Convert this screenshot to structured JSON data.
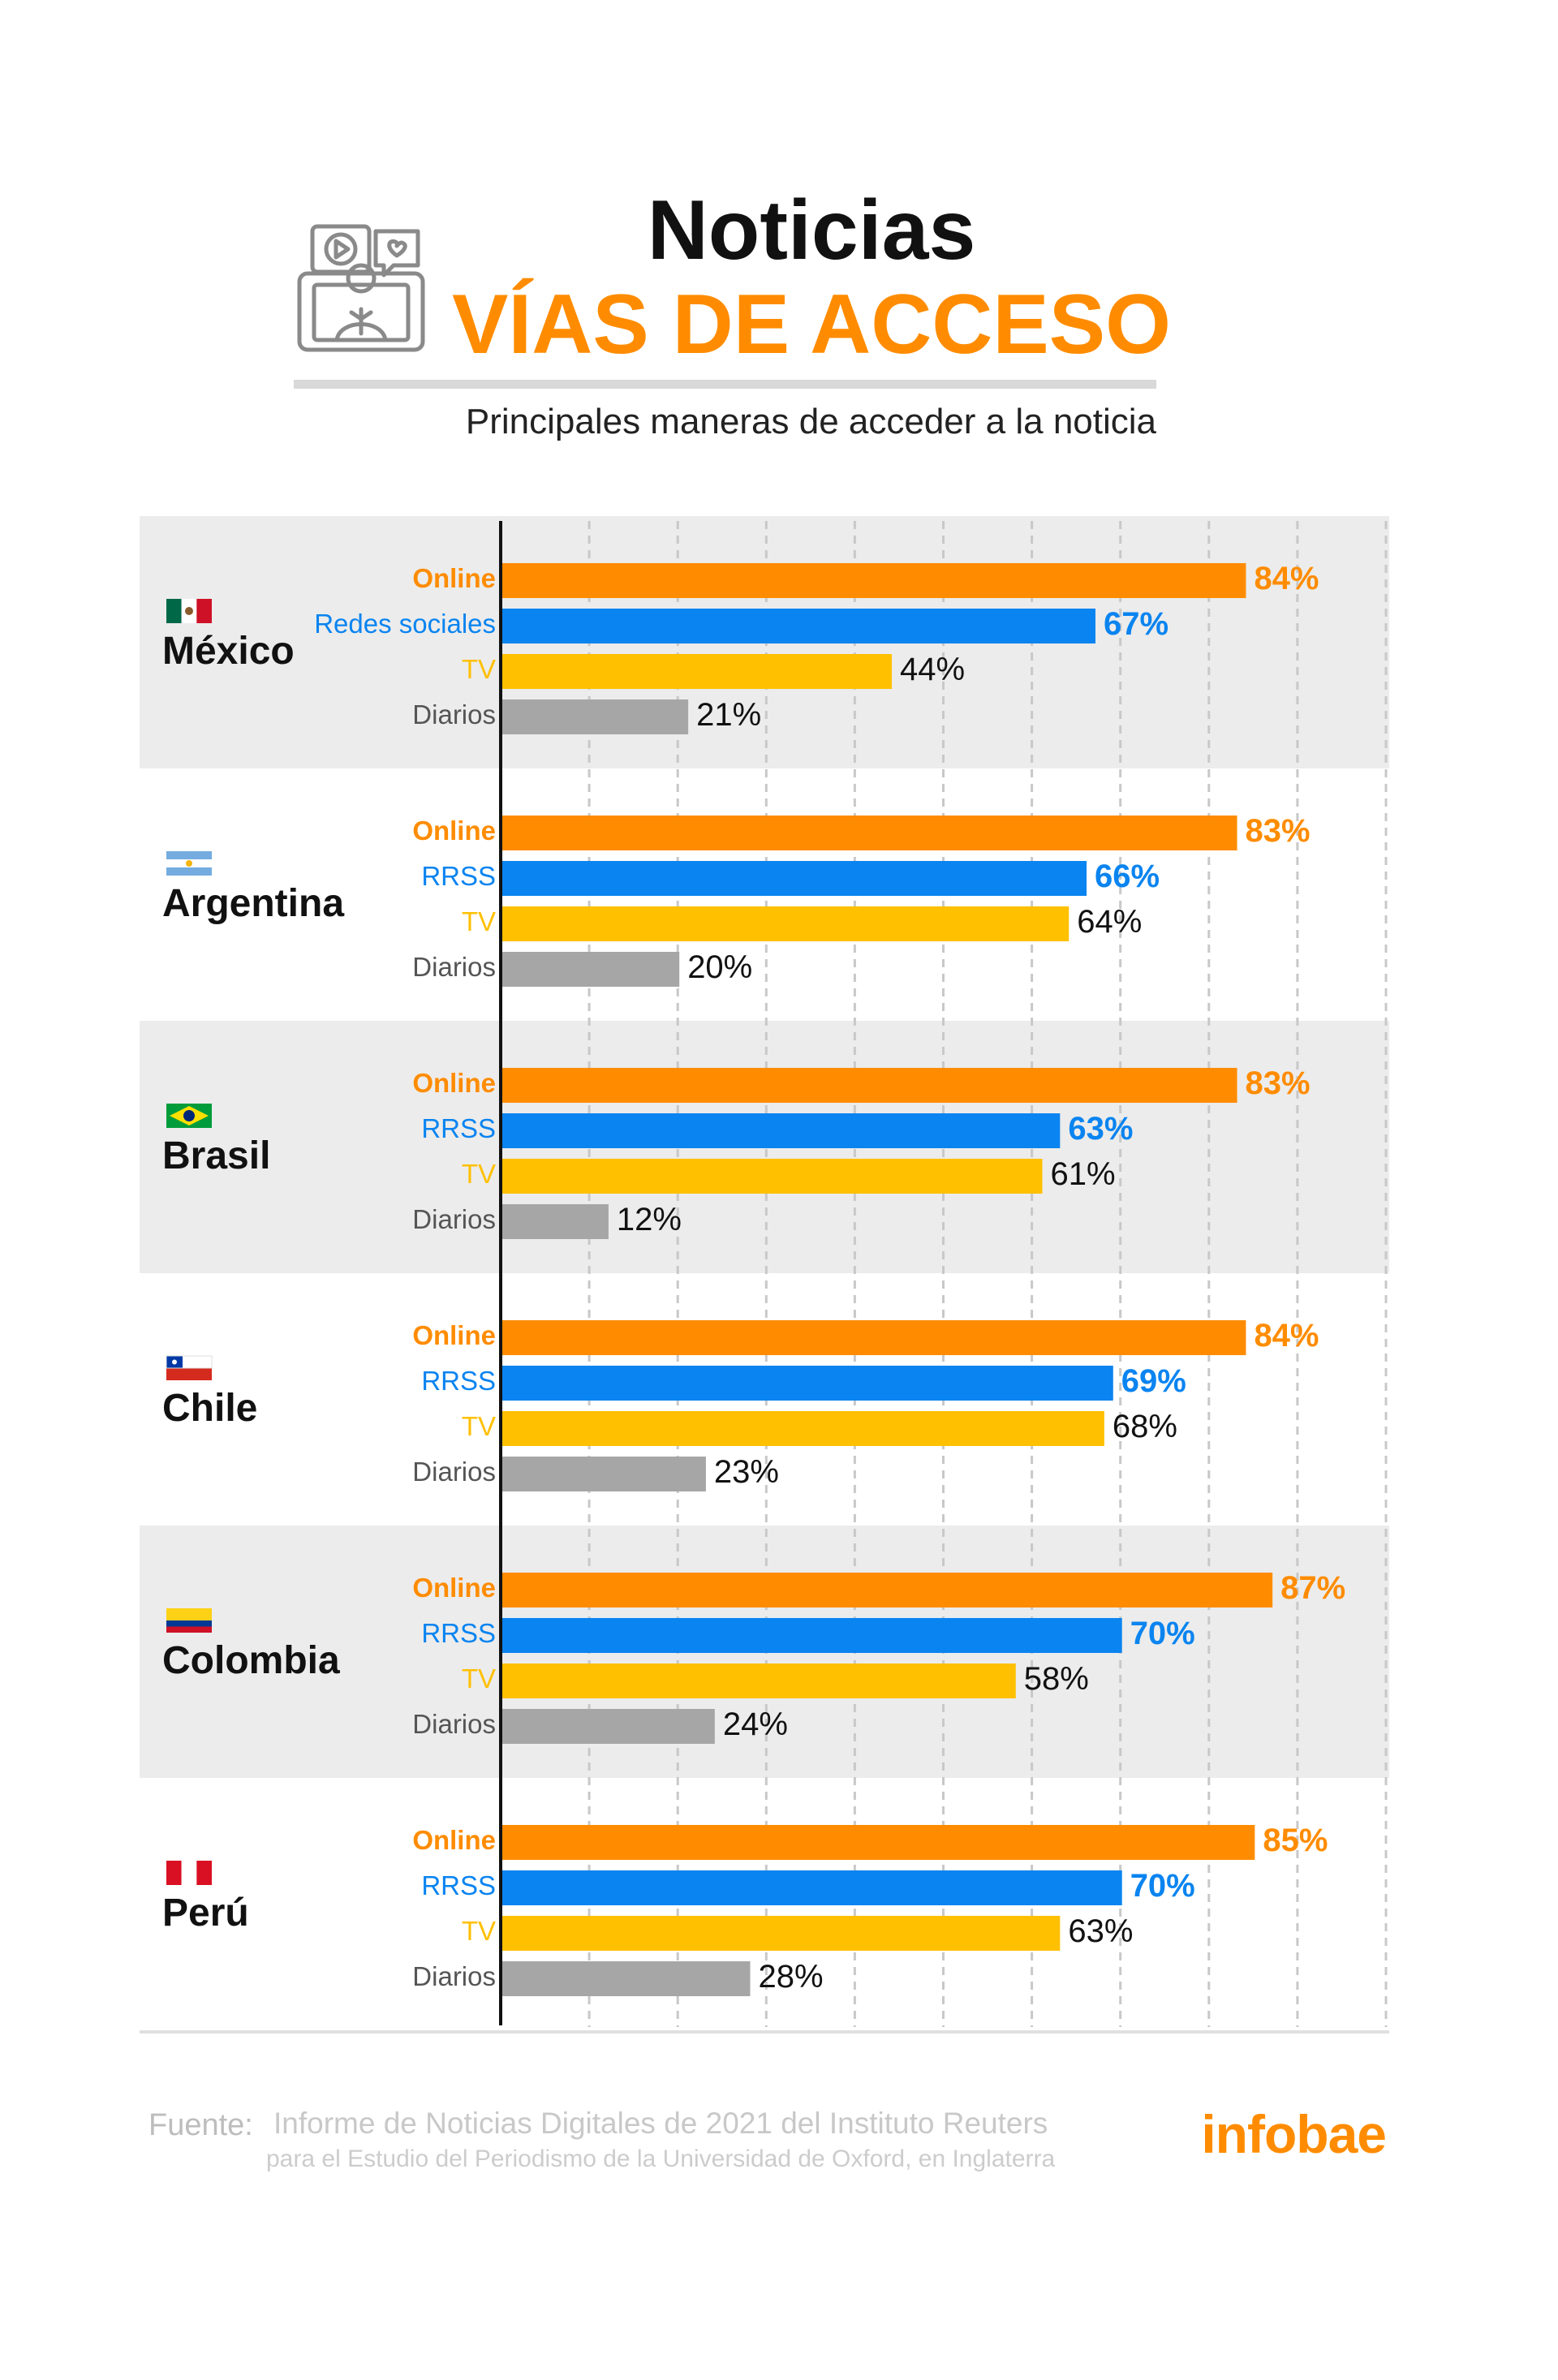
{
  "header": {
    "title": "Noticias",
    "subtitle": "VÍAS DE ACCESO",
    "description": "Principales maneras de acceder a la noticia",
    "icon": "news-media-icon"
  },
  "colors": {
    "Online": "#ff8c00",
    "RRSS": "#0a84f0",
    "TV": "#ffc000",
    "Diarios": "#a6a6a6",
    "title_accent": "#ff8c00",
    "band": "#ececec",
    "gridline": "#c8c8c8",
    "axis": "#111111"
  },
  "chart_data": {
    "type": "bar",
    "orientation": "horizontal",
    "value_range": [
      0,
      100
    ],
    "grid": true,
    "groups": [
      {
        "country": "México",
        "flag": "mexico-flag",
        "bars": [
          {
            "label": "Online",
            "series": "Online",
            "value": 84,
            "value_label": "84%"
          },
          {
            "label": "Redes sociales",
            "series": "RRSS",
            "value": 67,
            "value_label": "67%"
          },
          {
            "label": "TV",
            "series": "TV",
            "value": 44,
            "value_label": "44%"
          },
          {
            "label": "Diarios",
            "series": "Diarios",
            "value": 21,
            "value_label": "21%"
          }
        ]
      },
      {
        "country": "Argentina",
        "flag": "argentina-flag",
        "bars": [
          {
            "label": "Online",
            "series": "Online",
            "value": 83,
            "value_label": "83%"
          },
          {
            "label": "RRSS",
            "series": "RRSS",
            "value": 66,
            "value_label": "66%"
          },
          {
            "label": "TV",
            "series": "TV",
            "value": 64,
            "value_label": "64%"
          },
          {
            "label": "Diarios",
            "series": "Diarios",
            "value": 20,
            "value_label": "20%"
          }
        ]
      },
      {
        "country": "Brasil",
        "flag": "brazil-flag",
        "bars": [
          {
            "label": "Online",
            "series": "Online",
            "value": 83,
            "value_label": "83%"
          },
          {
            "label": "RRSS",
            "series": "RRSS",
            "value": 63,
            "value_label": "63%"
          },
          {
            "label": "TV",
            "series": "TV",
            "value": 61,
            "value_label": "61%"
          },
          {
            "label": "Diarios",
            "series": "Diarios",
            "value": 12,
            "value_label": "12%"
          }
        ]
      },
      {
        "country": "Chile",
        "flag": "chile-flag",
        "bars": [
          {
            "label": "Online",
            "series": "Online",
            "value": 84,
            "value_label": "84%"
          },
          {
            "label": "RRSS",
            "series": "RRSS",
            "value": 69,
            "value_label": "69%"
          },
          {
            "label": "TV",
            "series": "TV",
            "value": 68,
            "value_label": "68%"
          },
          {
            "label": "Diarios",
            "series": "Diarios",
            "value": 23,
            "value_label": "23%"
          }
        ]
      },
      {
        "country": "Colombia",
        "flag": "colombia-flag",
        "bars": [
          {
            "label": "Online",
            "series": "Online",
            "value": 87,
            "value_label": "87%"
          },
          {
            "label": "RRSS",
            "series": "RRSS",
            "value": 70,
            "value_label": "70%"
          },
          {
            "label": "TV",
            "series": "TV",
            "value": 58,
            "value_label": "58%"
          },
          {
            "label": "Diarios",
            "series": "Diarios",
            "value": 24,
            "value_label": "24%"
          }
        ]
      },
      {
        "country": "Perú",
        "flag": "peru-flag",
        "bars": [
          {
            "label": "Online",
            "series": "Online",
            "value": 85,
            "value_label": "85%"
          },
          {
            "label": "RRSS",
            "series": "RRSS",
            "value": 70,
            "value_label": "70%"
          },
          {
            "label": "TV",
            "series": "TV",
            "value": 63,
            "value_label": "63%"
          },
          {
            "label": "Diarios",
            "series": "Diarios",
            "value": 28,
            "value_label": "28%"
          }
        ]
      }
    ]
  },
  "footer": {
    "source_label": "Fuente:",
    "source_line1": "Informe de Noticias Digitales de 2021 del Instituto Reuters",
    "source_line2": "para el Estudio del Periodismo de la Universidad de Oxford, en Inglaterra",
    "brand": "infobae"
  }
}
